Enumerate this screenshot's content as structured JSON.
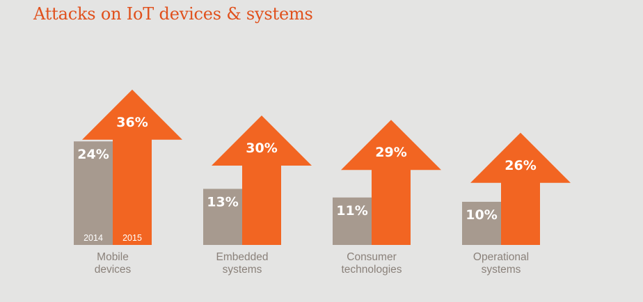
{
  "chart_data": {
    "type": "bar",
    "title": "Attacks on IoT devices & systems",
    "categories": [
      [
        "Mobile",
        "devices"
      ],
      [
        "Embedded",
        "systems"
      ],
      [
        "Consumer",
        "technologies"
      ],
      [
        "Operational",
        "systems"
      ]
    ],
    "series": [
      {
        "name": "2014",
        "values": [
          24,
          13,
          11,
          10
        ],
        "labels": [
          "24%",
          "13%",
          "11%",
          "10%"
        ],
        "color": "#a79a8f"
      },
      {
        "name": "2015",
        "values": [
          36,
          30,
          29,
          26
        ],
        "labels": [
          "36%",
          "30%",
          "29%",
          "26%"
        ],
        "color": "#f26522"
      }
    ],
    "unit": "%",
    "ylim": [
      0,
      40
    ],
    "grid": false,
    "legend": "year labels inside first category bars",
    "title_color": "#e0501c",
    "category_label_color": "#8a817a",
    "background": "#e4e4e3"
  }
}
